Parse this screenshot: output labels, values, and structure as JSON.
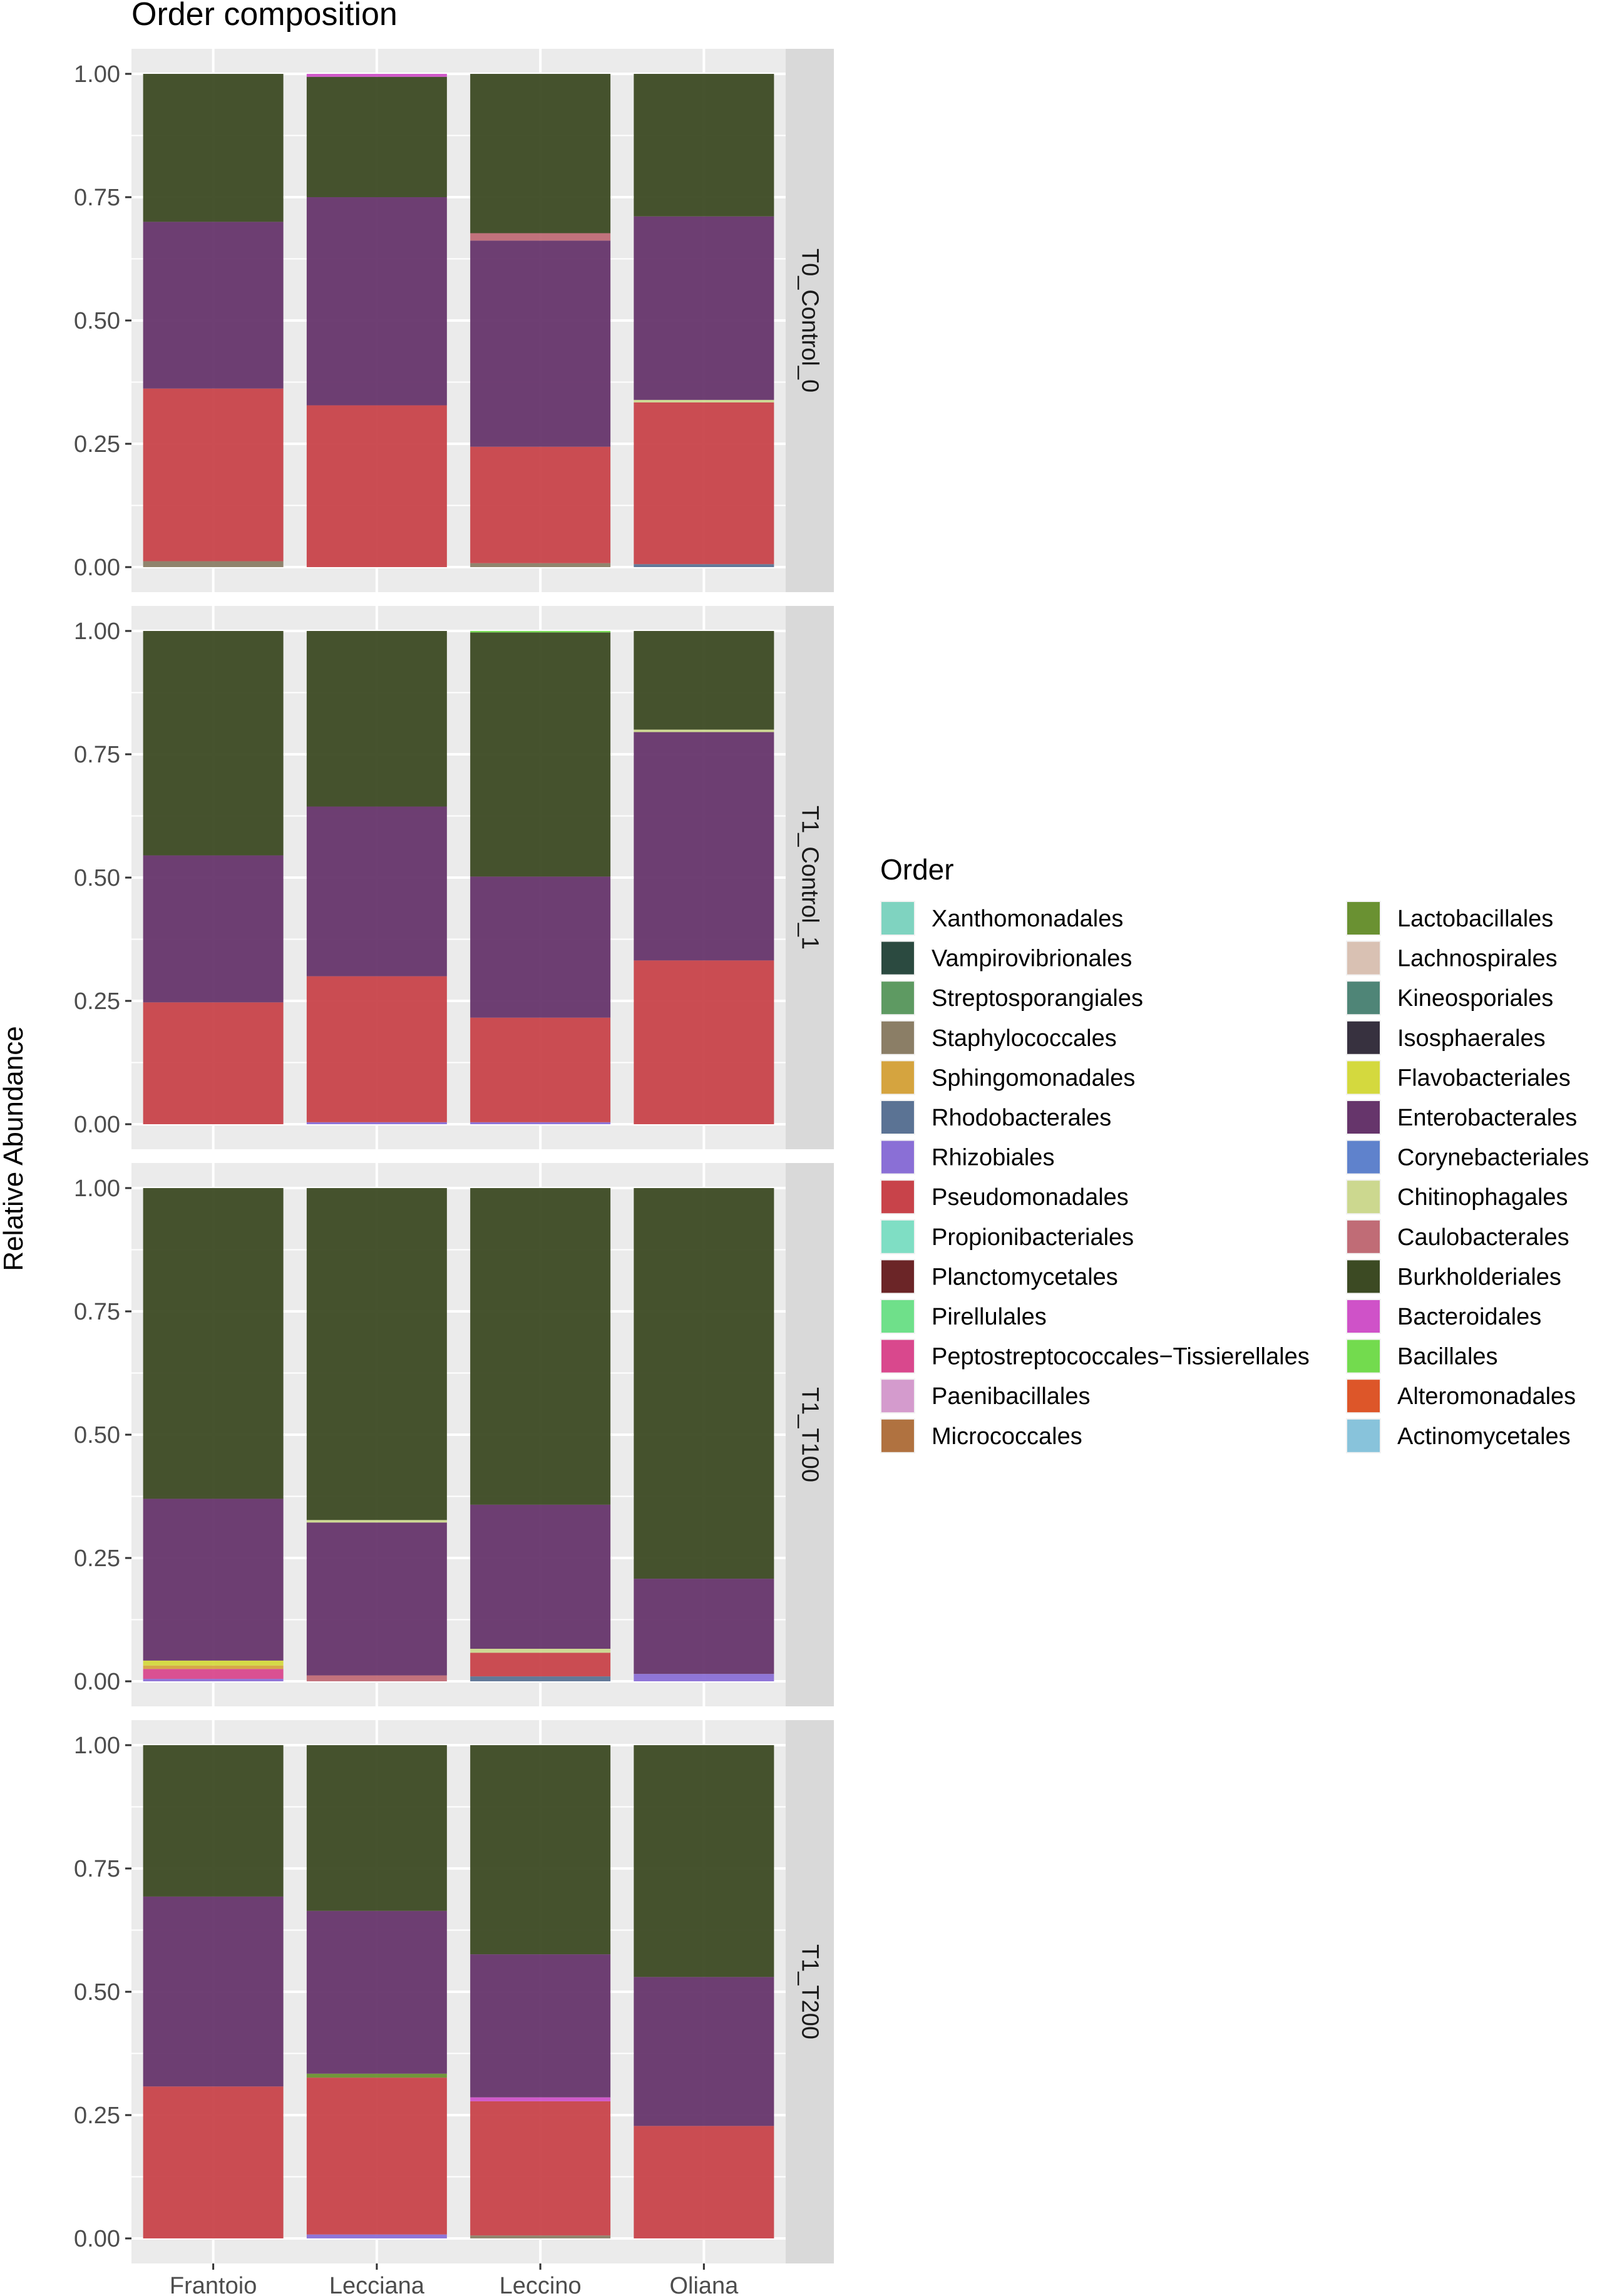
{
  "chart_data": {
    "type": "bar",
    "stacked": true,
    "title": "Order composition",
    "xlabel": "",
    "ylabel": "Relative Abundance",
    "ylim": [
      0,
      1
    ],
    "yticks": [
      "0.00",
      "0.25",
      "0.50",
      "0.75",
      "1.00"
    ],
    "categories": [
      "Frantoio",
      "Lecciana",
      "Leccino",
      "Oliana"
    ],
    "facets": [
      "T0_Control_0",
      "T1_Control_1",
      "T1_T100",
      "T1_T200"
    ],
    "legend_title": "Order",
    "legend_position": "right",
    "legend": [
      {
        "name": "Xanthomonadales",
        "color": "#7fd3c0"
      },
      {
        "name": "Vampirovibrionales",
        "color": "#2b4a40"
      },
      {
        "name": "Streptosporangiales",
        "color": "#5e9a62"
      },
      {
        "name": "Staphylococcales",
        "color": "#8b7e66"
      },
      {
        "name": "Sphingomonadales",
        "color": "#d5a43f"
      },
      {
        "name": "Rhodobacterales",
        "color": "#5b7394"
      },
      {
        "name": "Rhizobiales",
        "color": "#8a6fd6"
      },
      {
        "name": "Pseudomonadales",
        "color": "#c8434a"
      },
      {
        "name": "Propionibacteriales",
        "color": "#7fdec4"
      },
      {
        "name": "Planctomycetales",
        "color": "#6b2527"
      },
      {
        "name": "Pirellulales",
        "color": "#6fe08a"
      },
      {
        "name": "Peptostreptococcales−Tissierellales",
        "color": "#d9488d"
      },
      {
        "name": "Paenibacillales",
        "color": "#d49bcd"
      },
      {
        "name": "Micrococcales",
        "color": "#b07240"
      },
      {
        "name": "Lactobacillales",
        "color": "#6a9132"
      },
      {
        "name": "Lachnospirales",
        "color": "#d9c1b3"
      },
      {
        "name": "Kineosporiales",
        "color": "#4f8577"
      },
      {
        "name": "Isosphaerales",
        "color": "#37313f"
      },
      {
        "name": "Flavobacteriales",
        "color": "#d4d93e"
      },
      {
        "name": "Enterobacterales",
        "color": "#66356b"
      },
      {
        "name": "Corynebacteriales",
        "color": "#5f82cc"
      },
      {
        "name": "Chitinophagales",
        "color": "#ccd88f"
      },
      {
        "name": "Caulobacterales",
        "color": "#c06c76"
      },
      {
        "name": "Burkholderiales",
        "color": "#3c4a23"
      },
      {
        "name": "Bacteroidales",
        "color": "#cf52c8"
      },
      {
        "name": "Bacillales",
        "color": "#73db4e"
      },
      {
        "name": "Alteromonadales",
        "color": "#dd5629"
      },
      {
        "name": "Actinomycetales",
        "color": "#88c3db"
      }
    ],
    "panels": [
      {
        "facet": "T0_Control_0",
        "bars": [
          {
            "category": "Frantoio",
            "segments": [
              {
                "order": "Staphylococcales",
                "value": 0.012
              },
              {
                "order": "Pseudomonadales",
                "value": 0.35
              },
              {
                "order": "Enterobacterales",
                "value": 0.338
              },
              {
                "order": "Burkholderiales",
                "value": 0.3
              }
            ]
          },
          {
            "category": "Lecciana",
            "segments": [
              {
                "order": "Pseudomonadales",
                "value": 0.328
              },
              {
                "order": "Enterobacterales",
                "value": 0.422
              },
              {
                "order": "Burkholderiales",
                "value": 0.244
              },
              {
                "order": "Bacteroidales",
                "value": 0.006
              }
            ]
          },
          {
            "category": "Leccino",
            "segments": [
              {
                "order": "Staphylococcales",
                "value": 0.008
              },
              {
                "order": "Pseudomonadales",
                "value": 0.236
              },
              {
                "order": "Enterobacterales",
                "value": 0.418
              },
              {
                "order": "Caulobacterales",
                "value": 0.015
              },
              {
                "order": "Burkholderiales",
                "value": 0.323
              }
            ]
          },
          {
            "category": "Oliana",
            "segments": [
              {
                "order": "Rhodobacterales",
                "value": 0.006
              },
              {
                "order": "Pseudomonadales",
                "value": 0.328
              },
              {
                "order": "Chitinophagales",
                "value": 0.005
              },
              {
                "order": "Enterobacterales",
                "value": 0.372
              },
              {
                "order": "Burkholderiales",
                "value": 0.289
              }
            ]
          }
        ]
      },
      {
        "facet": "T1_Control_1",
        "bars": [
          {
            "category": "Frantoio",
            "segments": [
              {
                "order": "Pseudomonadales",
                "value": 0.247
              },
              {
                "order": "Enterobacterales",
                "value": 0.298
              },
              {
                "order": "Burkholderiales",
                "value": 0.455
              }
            ]
          },
          {
            "category": "Lecciana",
            "segments": [
              {
                "order": "Rhizobiales",
                "value": 0.004
              },
              {
                "order": "Pseudomonadales",
                "value": 0.296
              },
              {
                "order": "Enterobacterales",
                "value": 0.344
              },
              {
                "order": "Burkholderiales",
                "value": 0.356
              }
            ]
          },
          {
            "category": "Leccino",
            "segments": [
              {
                "order": "Rhizobiales",
                "value": 0.004
              },
              {
                "order": "Pseudomonadales",
                "value": 0.212
              },
              {
                "order": "Enterobacterales",
                "value": 0.286
              },
              {
                "order": "Burkholderiales",
                "value": 0.495
              },
              {
                "order": "Bacillales",
                "value": 0.003
              }
            ]
          },
          {
            "category": "Oliana",
            "segments": [
              {
                "order": "Pseudomonadales",
                "value": 0.332
              },
              {
                "order": "Enterobacterales",
                "value": 0.463
              },
              {
                "order": "Chitinophagales",
                "value": 0.005
              },
              {
                "order": "Burkholderiales",
                "value": 0.2
              }
            ]
          }
        ]
      },
      {
        "facet": "T1_T100",
        "bars": [
          {
            "category": "Frantoio",
            "segments": [
              {
                "order": "Rhizobiales",
                "value": 0.005
              },
              {
                "order": "Peptostreptococcales−Tissierellales",
                "value": 0.02
              },
              {
                "order": "Sphingomonadales",
                "value": 0.007
              },
              {
                "order": "Flavobacteriales",
                "value": 0.01
              },
              {
                "order": "Enterobacterales",
                "value": 0.328
              },
              {
                "order": "Burkholderiales",
                "value": 0.63
              }
            ]
          },
          {
            "category": "Lecciana",
            "segments": [
              {
                "order": "Caulobacterales",
                "value": 0.012
              },
              {
                "order": "Enterobacterales",
                "value": 0.31
              },
              {
                "order": "Chitinophagales",
                "value": 0.005
              },
              {
                "order": "Burkholderiales",
                "value": 0.673
              }
            ]
          },
          {
            "category": "Leccino",
            "segments": [
              {
                "order": "Rhodobacterales",
                "value": 0.01
              },
              {
                "order": "Pseudomonadales",
                "value": 0.048
              },
              {
                "order": "Chitinophagales",
                "value": 0.008
              },
              {
                "order": "Enterobacterales",
                "value": 0.292
              },
              {
                "order": "Burkholderiales",
                "value": 0.642
              }
            ]
          },
          {
            "category": "Oliana",
            "segments": [
              {
                "order": "Rhizobiales",
                "value": 0.015
              },
              {
                "order": "Enterobacterales",
                "value": 0.193
              },
              {
                "order": "Burkholderiales",
                "value": 0.792
              }
            ]
          }
        ]
      },
      {
        "facet": "T1_T200",
        "bars": [
          {
            "category": "Frantoio",
            "segments": [
              {
                "order": "Pseudomonadales",
                "value": 0.308
              },
              {
                "order": "Enterobacterales",
                "value": 0.385
              },
              {
                "order": "Burkholderiales",
                "value": 0.307
              }
            ]
          },
          {
            "category": "Lecciana",
            "segments": [
              {
                "order": "Rhizobiales",
                "value": 0.008
              },
              {
                "order": "Pseudomonadales",
                "value": 0.318
              },
              {
                "order": "Lactobacillales",
                "value": 0.008
              },
              {
                "order": "Enterobacterales",
                "value": 0.33
              },
              {
                "order": "Burkholderiales",
                "value": 0.336
              }
            ]
          },
          {
            "category": "Leccino",
            "segments": [
              {
                "order": "Staphylococcales",
                "value": 0.006
              },
              {
                "order": "Pseudomonadales",
                "value": 0.272
              },
              {
                "order": "Bacteroidales",
                "value": 0.008
              },
              {
                "order": "Enterobacterales",
                "value": 0.29
              },
              {
                "order": "Burkholderiales",
                "value": 0.424
              }
            ]
          },
          {
            "category": "Oliana",
            "segments": [
              {
                "order": "Pseudomonadales",
                "value": 0.228
              },
              {
                "order": "Enterobacterales",
                "value": 0.302
              },
              {
                "order": "Burkholderiales",
                "value": 0.47
              }
            ]
          }
        ]
      }
    ]
  }
}
